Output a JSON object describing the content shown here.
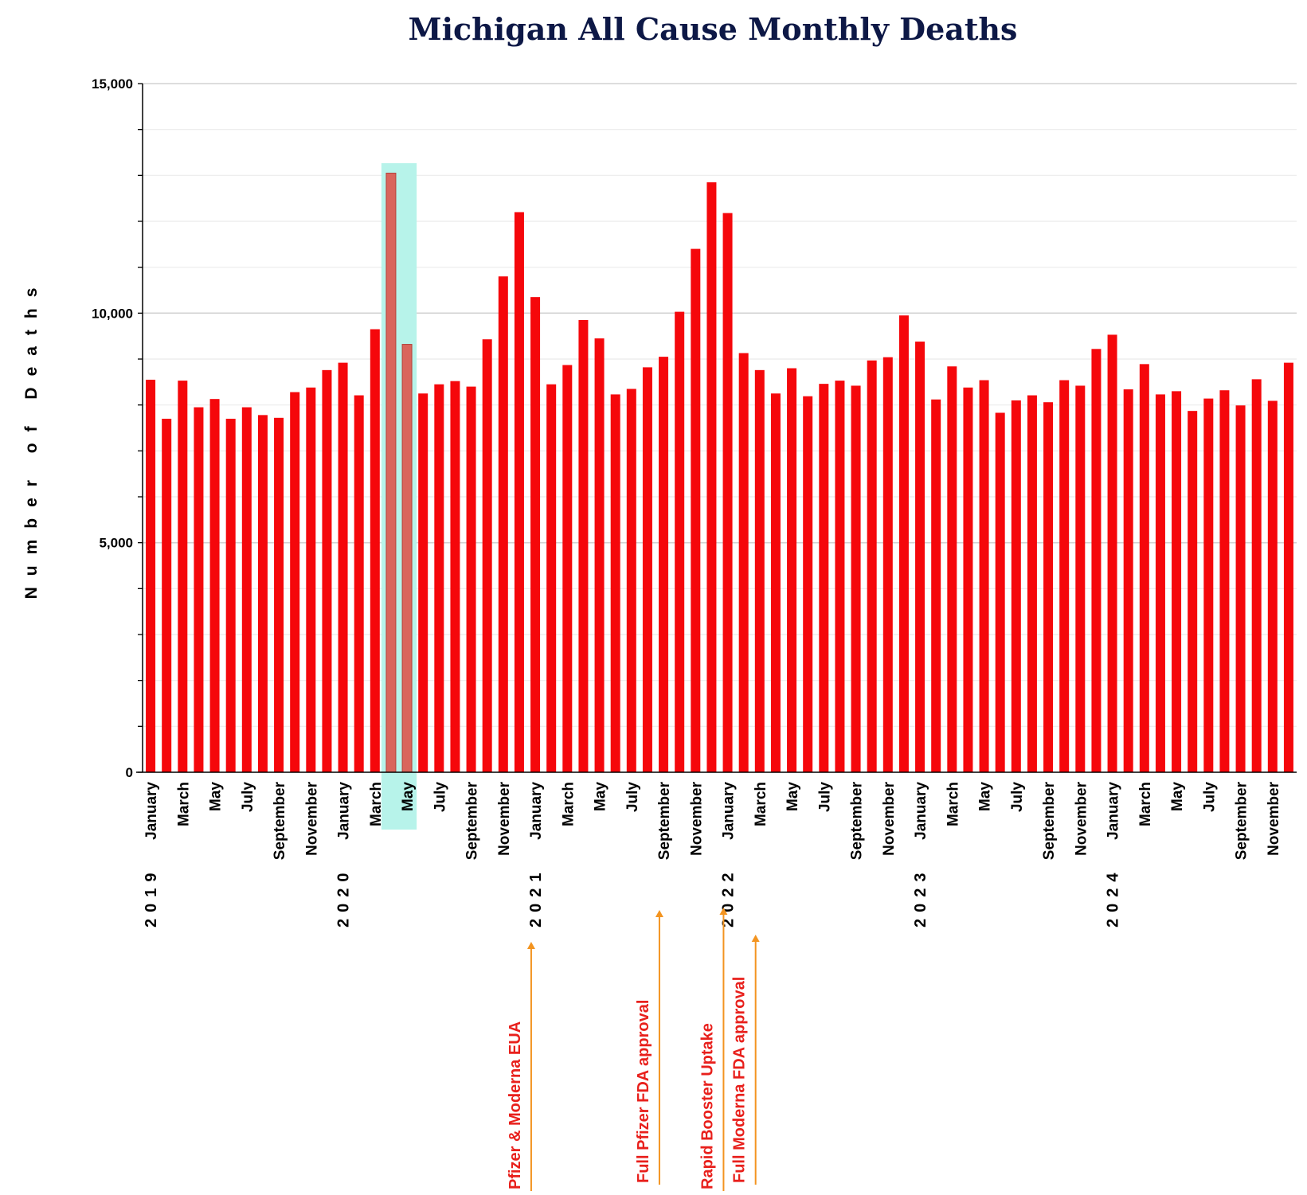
{
  "chart_data": {
    "type": "bar",
    "title": "Michigan All Cause Monthly Deaths",
    "ylabel": "Number of Deaths",
    "xlabel": "",
    "ylim": [
      0,
      15000
    ],
    "y_ticks": [
      "0",
      "5,000",
      "10,000",
      "15,000"
    ],
    "y_tick_values": [
      0,
      5000,
      10000,
      15000
    ],
    "bar_color": "#f5070b",
    "highlight_bar_color": "#d9655c",
    "highlight_band_color": "#b7f3ea",
    "highlight_months": [
      "2020-04",
      "2020-05"
    ],
    "categories": [
      "2019-01",
      "2019-02",
      "2019-03",
      "2019-04",
      "2019-05",
      "2019-06",
      "2019-07",
      "2019-08",
      "2019-09",
      "2019-10",
      "2019-11",
      "2019-12",
      "2020-01",
      "2020-02",
      "2020-03",
      "2020-04",
      "2020-05",
      "2020-06",
      "2020-07",
      "2020-08",
      "2020-09",
      "2020-10",
      "2020-11",
      "2020-12",
      "2021-01",
      "2021-02",
      "2021-03",
      "2021-04",
      "2021-05",
      "2021-06",
      "2021-07",
      "2021-08",
      "2021-09",
      "2021-10",
      "2021-11",
      "2021-12",
      "2022-01",
      "2022-02",
      "2022-03",
      "2022-04",
      "2022-05",
      "2022-06",
      "2022-07",
      "2022-08",
      "2022-09",
      "2022-10",
      "2022-11",
      "2022-12",
      "2023-01",
      "2023-02",
      "2023-03",
      "2023-04",
      "2023-05",
      "2023-06",
      "2023-07",
      "2023-08",
      "2023-09",
      "2023-10",
      "2023-11",
      "2023-12",
      "2024-01",
      "2024-02",
      "2024-03",
      "2024-04",
      "2024-05",
      "2024-06",
      "2024-07",
      "2024-08",
      "2024-09",
      "2024-10",
      "2024-11",
      "2024-12"
    ],
    "values": [
      8550,
      7700,
      8530,
      7950,
      8130,
      7700,
      7950,
      7780,
      7720,
      8280,
      8380,
      8760,
      8920,
      8210,
      9650,
      13050,
      9320,
      8250,
      8450,
      8520,
      8400,
      9430,
      10800,
      12200,
      10350,
      8450,
      8870,
      9850,
      9450,
      8230,
      8350,
      8820,
      9050,
      10030,
      11400,
      12850,
      12180,
      9130,
      8760,
      8250,
      8800,
      8190,
      8460,
      8530,
      8420,
      8970,
      9040,
      9950,
      9380,
      8120,
      8840,
      8380,
      8540,
      7830,
      8100,
      8210,
      8060,
      8540,
      8420,
      9220,
      9530,
      8340,
      8890,
      8230,
      8300,
      7870,
      8140,
      8320,
      7990,
      8560,
      8090,
      8920
    ],
    "month_tick_labels": [
      {
        "index": 0,
        "label": "January"
      },
      {
        "index": 2,
        "label": "March"
      },
      {
        "index": 4,
        "label": "May"
      },
      {
        "index": 6,
        "label": "July"
      },
      {
        "index": 8,
        "label": "September"
      },
      {
        "index": 10,
        "label": "November"
      },
      {
        "index": 12,
        "label": "January"
      },
      {
        "index": 14,
        "label": "March"
      },
      {
        "index": 16,
        "label": "May"
      },
      {
        "index": 18,
        "label": "July"
      },
      {
        "index": 20,
        "label": "September"
      },
      {
        "index": 22,
        "label": "November"
      },
      {
        "index": 24,
        "label": "January"
      },
      {
        "index": 26,
        "label": "March"
      },
      {
        "index": 28,
        "label": "May"
      },
      {
        "index": 30,
        "label": "July"
      },
      {
        "index": 32,
        "label": "September"
      },
      {
        "index": 34,
        "label": "November"
      },
      {
        "index": 36,
        "label": "January"
      },
      {
        "index": 38,
        "label": "March"
      },
      {
        "index": 40,
        "label": "May"
      },
      {
        "index": 42,
        "label": "July"
      },
      {
        "index": 44,
        "label": "September"
      },
      {
        "index": 46,
        "label": "November"
      },
      {
        "index": 48,
        "label": "January"
      },
      {
        "index": 50,
        "label": "March"
      },
      {
        "index": 52,
        "label": "May"
      },
      {
        "index": 54,
        "label": "July"
      },
      {
        "index": 56,
        "label": "September"
      },
      {
        "index": 58,
        "label": "November"
      },
      {
        "index": 60,
        "label": "January"
      },
      {
        "index": 62,
        "label": "March"
      },
      {
        "index": 64,
        "label": "May"
      },
      {
        "index": 66,
        "label": "July"
      },
      {
        "index": 68,
        "label": "September"
      },
      {
        "index": 70,
        "label": "November"
      }
    ],
    "year_labels": [
      {
        "index": 0,
        "label": "2019"
      },
      {
        "index": 12,
        "label": "2020"
      },
      {
        "index": 24,
        "label": "2021"
      },
      {
        "index": 36,
        "label": "2022"
      },
      {
        "index": 48,
        "label": "2023"
      },
      {
        "index": 60,
        "label": "2024"
      }
    ],
    "annotation_color": "#e8201c",
    "arrow_color": "#f39420",
    "annotations": [
      {
        "label": "Pfizer & Moderna EUA",
        "month_index": 23
      },
      {
        "label": "Full Pfizer FDA approval",
        "month_index": 31
      },
      {
        "label": "Rapid Booster Uptake",
        "month_index": 35
      },
      {
        "label": "Full Moderna FDA approval",
        "month_index": 37
      }
    ]
  }
}
